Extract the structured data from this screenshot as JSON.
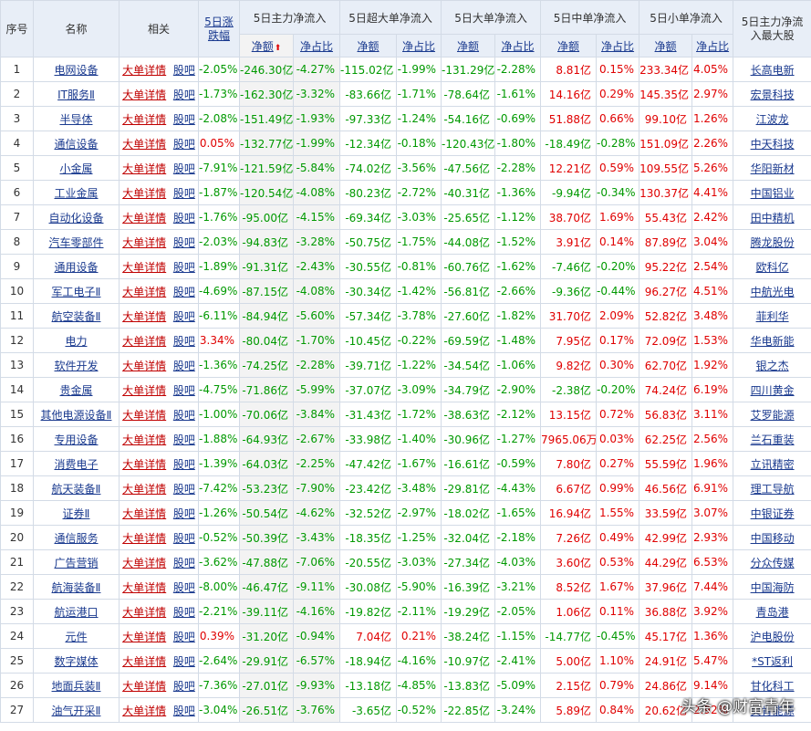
{
  "headers": {
    "idx": "序号",
    "name": "名称",
    "related": "相关",
    "change": "5日涨跌幅",
    "main": "5日主力净流入",
    "super": "5日超大单净流入",
    "big": "5日大单净流入",
    "mid": "5日中单净流入",
    "small": "5日小单净流入",
    "top_stock": "5日主力净流入最大股",
    "amount": "净额",
    "ratio": "净占比"
  },
  "sort_arrow": "⬆",
  "detail_label": "大单详情",
  "bar_label": "股吧",
  "rows": [
    {
      "idx": "1",
      "name": "电网设备",
      "chg": "-2.05%",
      "main_amt": "-246.30亿",
      "main_pct": "-4.27%",
      "sup_amt": "-115.02亿",
      "sup_pct": "-1.99%",
      "big_amt": "-131.29亿",
      "big_pct": "-2.28%",
      "mid_amt": "8.81亿",
      "mid_pct": "0.15%",
      "sml_amt": "233.34亿",
      "sml_pct": "4.05%",
      "stock": "长高电新"
    },
    {
      "idx": "2",
      "name": "IT服务Ⅱ",
      "chg": "-1.73%",
      "main_amt": "-162.30亿",
      "main_pct": "-3.32%",
      "sup_amt": "-83.66亿",
      "sup_pct": "-1.71%",
      "big_amt": "-78.64亿",
      "big_pct": "-1.61%",
      "mid_amt": "14.16亿",
      "mid_pct": "0.29%",
      "sml_amt": "145.35亿",
      "sml_pct": "2.97%",
      "stock": "宏景科技"
    },
    {
      "idx": "3",
      "name": "半导体",
      "chg": "-2.08%",
      "main_amt": "-151.49亿",
      "main_pct": "-1.93%",
      "sup_amt": "-97.33亿",
      "sup_pct": "-1.24%",
      "big_amt": "-54.16亿",
      "big_pct": "-0.69%",
      "mid_amt": "51.88亿",
      "mid_pct": "0.66%",
      "sml_amt": "99.10亿",
      "sml_pct": "1.26%",
      "stock": "江波龙"
    },
    {
      "idx": "4",
      "name": "通信设备",
      "chg": "0.05%",
      "main_amt": "-132.77亿",
      "main_pct": "-1.99%",
      "sup_amt": "-12.34亿",
      "sup_pct": "-0.18%",
      "big_amt": "-120.43亿",
      "big_pct": "-1.80%",
      "mid_amt": "-18.49亿",
      "mid_pct": "-0.28%",
      "sml_amt": "151.09亿",
      "sml_pct": "2.26%",
      "stock": "中天科技"
    },
    {
      "idx": "5",
      "name": "小金属",
      "chg": "-7.91%",
      "main_amt": "-121.59亿",
      "main_pct": "-5.84%",
      "sup_amt": "-74.02亿",
      "sup_pct": "-3.56%",
      "big_amt": "-47.56亿",
      "big_pct": "-2.28%",
      "mid_amt": "12.21亿",
      "mid_pct": "0.59%",
      "sml_amt": "109.55亿",
      "sml_pct": "5.26%",
      "stock": "华阳新材"
    },
    {
      "idx": "6",
      "name": "工业金属",
      "chg": "-1.87%",
      "main_amt": "-120.54亿",
      "main_pct": "-4.08%",
      "sup_amt": "-80.23亿",
      "sup_pct": "-2.72%",
      "big_amt": "-40.31亿",
      "big_pct": "-1.36%",
      "mid_amt": "-9.94亿",
      "mid_pct": "-0.34%",
      "sml_amt": "130.37亿",
      "sml_pct": "4.41%",
      "stock": "中国铝业"
    },
    {
      "idx": "7",
      "name": "自动化设备",
      "chg": "-1.76%",
      "main_amt": "-95.00亿",
      "main_pct": "-4.15%",
      "sup_amt": "-69.34亿",
      "sup_pct": "-3.03%",
      "big_amt": "-25.65亿",
      "big_pct": "-1.12%",
      "mid_amt": "38.70亿",
      "mid_pct": "1.69%",
      "sml_amt": "55.43亿",
      "sml_pct": "2.42%",
      "stock": "田中精机"
    },
    {
      "idx": "8",
      "name": "汽车零部件",
      "chg": "-2.03%",
      "main_amt": "-94.83亿",
      "main_pct": "-3.28%",
      "sup_amt": "-50.75亿",
      "sup_pct": "-1.75%",
      "big_amt": "-44.08亿",
      "big_pct": "-1.52%",
      "mid_amt": "3.91亿",
      "mid_pct": "0.14%",
      "sml_amt": "87.89亿",
      "sml_pct": "3.04%",
      "stock": "腾龙股份"
    },
    {
      "idx": "9",
      "name": "通用设备",
      "chg": "-1.89%",
      "main_amt": "-91.31亿",
      "main_pct": "-2.43%",
      "sup_amt": "-30.55亿",
      "sup_pct": "-0.81%",
      "big_amt": "-60.76亿",
      "big_pct": "-1.62%",
      "mid_amt": "-7.46亿",
      "mid_pct": "-0.20%",
      "sml_amt": "95.22亿",
      "sml_pct": "2.54%",
      "stock": "欧科亿"
    },
    {
      "idx": "10",
      "name": "军工电子Ⅱ",
      "chg": "-4.69%",
      "main_amt": "-87.15亿",
      "main_pct": "-4.08%",
      "sup_amt": "-30.34亿",
      "sup_pct": "-1.42%",
      "big_amt": "-56.81亿",
      "big_pct": "-2.66%",
      "mid_amt": "-9.36亿",
      "mid_pct": "-0.44%",
      "sml_amt": "96.27亿",
      "sml_pct": "4.51%",
      "stock": "中航光电"
    },
    {
      "idx": "11",
      "name": "航空装备Ⅱ",
      "chg": "-6.11%",
      "main_amt": "-84.94亿",
      "main_pct": "-5.60%",
      "sup_amt": "-57.34亿",
      "sup_pct": "-3.78%",
      "big_amt": "-27.60亿",
      "big_pct": "-1.82%",
      "mid_amt": "31.70亿",
      "mid_pct": "2.09%",
      "sml_amt": "52.82亿",
      "sml_pct": "3.48%",
      "stock": "菲利华"
    },
    {
      "idx": "12",
      "name": "电力",
      "chg": "3.34%",
      "main_amt": "-80.04亿",
      "main_pct": "-1.70%",
      "sup_amt": "-10.45亿",
      "sup_pct": "-0.22%",
      "big_amt": "-69.59亿",
      "big_pct": "-1.48%",
      "mid_amt": "7.95亿",
      "mid_pct": "0.17%",
      "sml_amt": "72.09亿",
      "sml_pct": "1.53%",
      "stock": "华电新能"
    },
    {
      "idx": "13",
      "name": "软件开发",
      "chg": "-1.36%",
      "main_amt": "-74.25亿",
      "main_pct": "-2.28%",
      "sup_amt": "-39.71亿",
      "sup_pct": "-1.22%",
      "big_amt": "-34.54亿",
      "big_pct": "-1.06%",
      "mid_amt": "9.82亿",
      "mid_pct": "0.30%",
      "sml_amt": "62.70亿",
      "sml_pct": "1.92%",
      "stock": "银之杰"
    },
    {
      "idx": "14",
      "name": "贵金属",
      "chg": "-4.75%",
      "main_amt": "-71.86亿",
      "main_pct": "-5.99%",
      "sup_amt": "-37.07亿",
      "sup_pct": "-3.09%",
      "big_amt": "-34.79亿",
      "big_pct": "-2.90%",
      "mid_amt": "-2.38亿",
      "mid_pct": "-0.20%",
      "sml_amt": "74.24亿",
      "sml_pct": "6.19%",
      "stock": "四川黄金"
    },
    {
      "idx": "15",
      "name": "其他电源设备Ⅱ",
      "chg": "-1.00%",
      "main_amt": "-70.06亿",
      "main_pct": "-3.84%",
      "sup_amt": "-31.43亿",
      "sup_pct": "-1.72%",
      "big_amt": "-38.63亿",
      "big_pct": "-2.12%",
      "mid_amt": "13.15亿",
      "mid_pct": "0.72%",
      "sml_amt": "56.83亿",
      "sml_pct": "3.11%",
      "stock": "艾罗能源"
    },
    {
      "idx": "16",
      "name": "专用设备",
      "chg": "-1.88%",
      "main_amt": "-64.93亿",
      "main_pct": "-2.67%",
      "sup_amt": "-33.98亿",
      "sup_pct": "-1.40%",
      "big_amt": "-30.96亿",
      "big_pct": "-1.27%",
      "mid_amt": "7965.06万",
      "mid_pct": "0.03%",
      "sml_amt": "62.25亿",
      "sml_pct": "2.56%",
      "stock": "兰石重装"
    },
    {
      "idx": "17",
      "name": "消费电子",
      "chg": "-1.39%",
      "main_amt": "-64.03亿",
      "main_pct": "-2.25%",
      "sup_amt": "-47.42亿",
      "sup_pct": "-1.67%",
      "big_amt": "-16.61亿",
      "big_pct": "-0.59%",
      "mid_amt": "7.80亿",
      "mid_pct": "0.27%",
      "sml_amt": "55.59亿",
      "sml_pct": "1.96%",
      "stock": "立讯精密"
    },
    {
      "idx": "18",
      "name": "航天装备Ⅱ",
      "chg": "-7.42%",
      "main_amt": "-53.23亿",
      "main_pct": "-7.90%",
      "sup_amt": "-23.42亿",
      "sup_pct": "-3.48%",
      "big_amt": "-29.81亿",
      "big_pct": "-4.43%",
      "mid_amt": "6.67亿",
      "mid_pct": "0.99%",
      "sml_amt": "46.56亿",
      "sml_pct": "6.91%",
      "stock": "理工导航"
    },
    {
      "idx": "19",
      "name": "证券Ⅱ",
      "chg": "-1.26%",
      "main_amt": "-50.54亿",
      "main_pct": "-4.62%",
      "sup_amt": "-32.52亿",
      "sup_pct": "-2.97%",
      "big_amt": "-18.02亿",
      "big_pct": "-1.65%",
      "mid_amt": "16.94亿",
      "mid_pct": "1.55%",
      "sml_amt": "33.59亿",
      "sml_pct": "3.07%",
      "stock": "中银证券"
    },
    {
      "idx": "20",
      "name": "通信服务",
      "chg": "-0.52%",
      "main_amt": "-50.39亿",
      "main_pct": "-3.43%",
      "sup_amt": "-18.35亿",
      "sup_pct": "-1.25%",
      "big_amt": "-32.04亿",
      "big_pct": "-2.18%",
      "mid_amt": "7.26亿",
      "mid_pct": "0.49%",
      "sml_amt": "42.99亿",
      "sml_pct": "2.93%",
      "stock": "中国移动"
    },
    {
      "idx": "21",
      "name": "广告营销",
      "chg": "-3.62%",
      "main_amt": "-47.88亿",
      "main_pct": "-7.06%",
      "sup_amt": "-20.55亿",
      "sup_pct": "-3.03%",
      "big_amt": "-27.34亿",
      "big_pct": "-4.03%",
      "mid_amt": "3.60亿",
      "mid_pct": "0.53%",
      "sml_amt": "44.29亿",
      "sml_pct": "6.53%",
      "stock": "分众传媒"
    },
    {
      "idx": "22",
      "name": "航海装备Ⅱ",
      "chg": "-8.00%",
      "main_amt": "-46.47亿",
      "main_pct": "-9.11%",
      "sup_amt": "-30.08亿",
      "sup_pct": "-5.90%",
      "big_amt": "-16.39亿",
      "big_pct": "-3.21%",
      "mid_amt": "8.52亿",
      "mid_pct": "1.67%",
      "sml_amt": "37.96亿",
      "sml_pct": "7.44%",
      "stock": "中国海防"
    },
    {
      "idx": "23",
      "name": "航运港口",
      "chg": "-2.21%",
      "main_amt": "-39.11亿",
      "main_pct": "-4.16%",
      "sup_amt": "-19.82亿",
      "sup_pct": "-2.11%",
      "big_amt": "-19.29亿",
      "big_pct": "-2.05%",
      "mid_amt": "1.06亿",
      "mid_pct": "0.11%",
      "sml_amt": "36.88亿",
      "sml_pct": "3.92%",
      "stock": "青岛港"
    },
    {
      "idx": "24",
      "name": "元件",
      "chg": "0.39%",
      "main_amt": "-31.20亿",
      "main_pct": "-0.94%",
      "sup_amt": "7.04亿",
      "sup_pct": "0.21%",
      "big_amt": "-38.24亿",
      "big_pct": "-1.15%",
      "mid_amt": "-14.77亿",
      "mid_pct": "-0.45%",
      "sml_amt": "45.17亿",
      "sml_pct": "1.36%",
      "stock": "沪电股份"
    },
    {
      "idx": "25",
      "name": "数字媒体",
      "chg": "-2.64%",
      "main_amt": "-29.91亿",
      "main_pct": "-6.57%",
      "sup_amt": "-18.94亿",
      "sup_pct": "-4.16%",
      "big_amt": "-10.97亿",
      "big_pct": "-2.41%",
      "mid_amt": "5.00亿",
      "mid_pct": "1.10%",
      "sml_amt": "24.91亿",
      "sml_pct": "5.47%",
      "stock": "*ST返利"
    },
    {
      "idx": "26",
      "name": "地面兵装Ⅱ",
      "chg": "-7.36%",
      "main_amt": "-27.01亿",
      "main_pct": "-9.93%",
      "sup_amt": "-13.18亿",
      "sup_pct": "-4.85%",
      "big_amt": "-13.83亿",
      "big_pct": "-5.09%",
      "mid_amt": "2.15亿",
      "mid_pct": "0.79%",
      "sml_amt": "24.86亿",
      "sml_pct": "9.14%",
      "stock": "甘化科工"
    },
    {
      "idx": "27",
      "name": "油气开采Ⅱ",
      "chg": "-3.04%",
      "main_amt": "-26.51亿",
      "main_pct": "-3.76%",
      "sup_amt": "-3.65亿",
      "sup_pct": "-0.52%",
      "big_amt": "-22.85亿",
      "big_pct": "-3.24%",
      "mid_amt": "5.89亿",
      "mid_pct": "0.84%",
      "sml_amt": "20.62亿",
      "sml_pct": "2.92%",
      "stock": "贝肯能源"
    }
  ],
  "watermark": "头条 @财富青年"
}
